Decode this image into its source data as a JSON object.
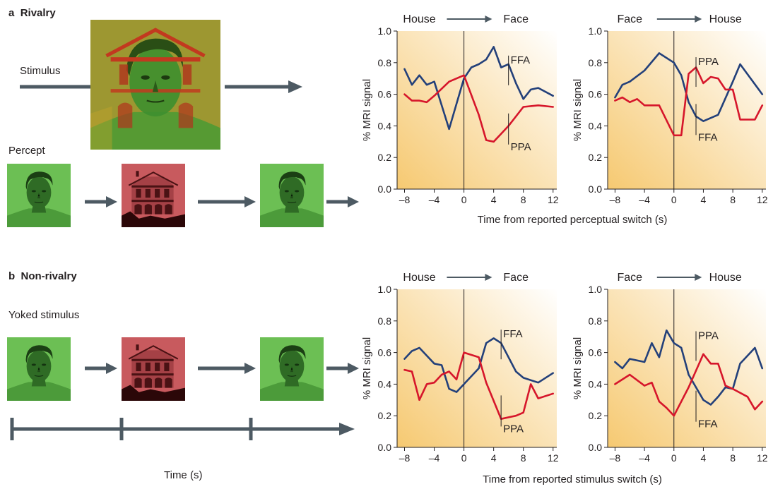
{
  "panel_a": {
    "letter": "a",
    "title": "Rivalry",
    "stimulus_label": "Stimulus",
    "percept_label": "Percept",
    "x_axis_title": "Time from reported perceptual switch (s)"
  },
  "panel_b": {
    "letter": "b",
    "title": "Non-rivalry",
    "yoked_label": "Yoked stimulus",
    "time_label": "Time (s)",
    "x_axis_title": "Time from reported stimulus switch (s)"
  },
  "icons": {
    "face": "face-image",
    "house": "house-image",
    "composite": "rivalry-composite-image",
    "arrow": "right-arrow-icon"
  },
  "colors": {
    "ffa_line": "#23407a",
    "ppa_line": "#d6162b",
    "face_tint": "#6cbf54",
    "house_tint": "#c85a5e",
    "arrow": "#4d5a63",
    "shade": "#f7cf83"
  },
  "chart_data": [
    {
      "type": "line",
      "panel": "a-left",
      "header_from": "House",
      "header_to": "Face",
      "ylabel": "% MRI signal",
      "xlim": [
        -9,
        12.5
      ],
      "ylim": [
        0,
        1.0
      ],
      "xticks": [
        "–8",
        "–4",
        "0",
        "4",
        "8",
        "12"
      ],
      "xtick_values": [
        -8,
        -4,
        0,
        4,
        8,
        12
      ],
      "yticks": [
        "0.0",
        "0.2",
        "0.4",
        "0.6",
        "0.8",
        "1.0"
      ],
      "ytick_values": [
        0,
        0.2,
        0.4,
        0.6,
        0.8,
        1.0
      ],
      "series": [
        {
          "name": "FFA",
          "color": "#23407a",
          "x": [
            -8,
            -7,
            -6,
            -5,
            -4,
            -2,
            0,
            1,
            2,
            3,
            4,
            5,
            6,
            7,
            8,
            9,
            10,
            12
          ],
          "y": [
            0.76,
            0.66,
            0.72,
            0.66,
            0.68,
            0.38,
            0.7,
            0.77,
            0.79,
            0.82,
            0.9,
            0.77,
            0.79,
            0.67,
            0.57,
            0.63,
            0.64,
            0.59
          ]
        },
        {
          "name": "PPA",
          "color": "#d6162b",
          "x": [
            -8,
            -7,
            -6,
            -5,
            -4,
            -2,
            0,
            2,
            3,
            4,
            5,
            6,
            8,
            10,
            12
          ],
          "y": [
            0.6,
            0.56,
            0.56,
            0.55,
            0.59,
            0.68,
            0.72,
            0.47,
            0.31,
            0.3,
            0.35,
            0.4,
            0.52,
            0.53,
            0.52
          ]
        }
      ],
      "annotations": [
        {
          "text": "FFA",
          "x": 6,
          "y": 0.8
        },
        {
          "text": "PPA",
          "x": 6,
          "y": 0.3
        }
      ]
    },
    {
      "type": "line",
      "panel": "a-right",
      "header_from": "Face",
      "header_to": "House",
      "ylabel": "% MRI signal",
      "xlim": [
        -9,
        12.5
      ],
      "ylim": [
        0,
        1.0
      ],
      "xticks": [
        "–8",
        "–4",
        "0",
        "4",
        "8",
        "12"
      ],
      "xtick_values": [
        -8,
        -4,
        0,
        4,
        8,
        12
      ],
      "yticks": [
        "0.0",
        "0.2",
        "0.4",
        "0.6",
        "0.8",
        "1.0"
      ],
      "ytick_values": [
        0,
        0.2,
        0.4,
        0.6,
        0.8,
        1.0
      ],
      "series": [
        {
          "name": "FFA",
          "color": "#23407a",
          "x": [
            -8,
            -7,
            -6,
            -4,
            -2,
            0,
            1,
            2,
            3,
            4,
            6,
            8,
            9,
            12
          ],
          "y": [
            0.58,
            0.66,
            0.68,
            0.75,
            0.86,
            0.8,
            0.72,
            0.55,
            0.46,
            0.43,
            0.47,
            0.68,
            0.79,
            0.6
          ]
        },
        {
          "name": "PPA",
          "color": "#d6162b",
          "x": [
            -8,
            -7,
            -6,
            -5,
            -4,
            -2,
            0,
            1,
            2,
            3,
            4,
            5,
            6,
            7,
            8,
            9,
            11,
            12
          ],
          "y": [
            0.56,
            0.58,
            0.55,
            0.57,
            0.53,
            0.53,
            0.34,
            0.34,
            0.73,
            0.77,
            0.67,
            0.71,
            0.7,
            0.63,
            0.63,
            0.44,
            0.44,
            0.53
          ]
        }
      ],
      "annotations": [
        {
          "text": "PPA",
          "x": 3,
          "y": 0.79
        },
        {
          "text": "FFA",
          "x": 3,
          "y": 0.36
        }
      ]
    },
    {
      "type": "line",
      "panel": "b-left",
      "header_from": "House",
      "header_to": "Face",
      "ylabel": "% MRI signal",
      "xlim": [
        -9,
        12.5
      ],
      "ylim": [
        0,
        1.0
      ],
      "xticks": [
        "–8",
        "–4",
        "0",
        "4",
        "8",
        "12"
      ],
      "xtick_values": [
        -8,
        -4,
        0,
        4,
        8,
        12
      ],
      "yticks": [
        "0.0",
        "0.2",
        "0.4",
        "0.6",
        "0.8",
        "1.0"
      ],
      "ytick_values": [
        0,
        0.2,
        0.4,
        0.6,
        0.8,
        1.0
      ],
      "series": [
        {
          "name": "FFA",
          "color": "#23407a",
          "x": [
            -8,
            -7,
            -6,
            -4,
            -3,
            -2,
            -1,
            0,
            2,
            3,
            4,
            5,
            6,
            7,
            8,
            10,
            12
          ],
          "y": [
            0.56,
            0.61,
            0.63,
            0.53,
            0.52,
            0.37,
            0.35,
            0.4,
            0.5,
            0.66,
            0.69,
            0.66,
            0.57,
            0.48,
            0.44,
            0.41,
            0.47
          ]
        },
        {
          "name": "PPA",
          "color": "#d6162b",
          "x": [
            -8,
            -7,
            -6,
            -5,
            -4,
            -3,
            -2,
            -1,
            0,
            2,
            3,
            5,
            6,
            7,
            8,
            9,
            10,
            12
          ],
          "y": [
            0.49,
            0.48,
            0.3,
            0.4,
            0.41,
            0.46,
            0.48,
            0.43,
            0.6,
            0.57,
            0.41,
            0.18,
            0.19,
            0.2,
            0.22,
            0.4,
            0.31,
            0.34
          ]
        }
      ],
      "annotations": [
        {
          "text": "FFA",
          "x": 5,
          "y": 0.7
        },
        {
          "text": "PPA",
          "x": 5,
          "y": 0.15
        }
      ]
    },
    {
      "type": "line",
      "panel": "b-right",
      "header_from": "Face",
      "header_to": "House",
      "ylabel": "% MRI signal",
      "xlim": [
        -9,
        12.5
      ],
      "ylim": [
        0,
        1.0
      ],
      "xticks": [
        "–8",
        "–4",
        "0",
        "4",
        "8",
        "12"
      ],
      "xtick_values": [
        -8,
        -4,
        0,
        4,
        8,
        12
      ],
      "yticks": [
        "0.0",
        "0.2",
        "0.4",
        "0.6",
        "0.8",
        "1.0"
      ],
      "ytick_values": [
        0,
        0.2,
        0.4,
        0.6,
        0.8,
        1.0
      ],
      "series": [
        {
          "name": "FFA",
          "color": "#23407a",
          "x": [
            -8,
            -7,
            -6,
            -4,
            -3,
            -2,
            -1,
            0,
            1,
            2,
            3,
            4,
            5,
            6,
            7,
            8,
            9,
            11,
            12
          ],
          "y": [
            0.54,
            0.5,
            0.56,
            0.54,
            0.66,
            0.57,
            0.74,
            0.66,
            0.63,
            0.46,
            0.38,
            0.3,
            0.27,
            0.32,
            0.38,
            0.37,
            0.53,
            0.63,
            0.5
          ]
        },
        {
          "name": "PPA",
          "color": "#d6162b",
          "x": [
            -8,
            -6,
            -4,
            -3,
            -2,
            -1,
            0,
            2,
            4,
            5,
            6,
            7,
            8,
            10,
            11,
            12
          ],
          "y": [
            0.4,
            0.46,
            0.39,
            0.41,
            0.29,
            0.25,
            0.2,
            0.38,
            0.59,
            0.53,
            0.53,
            0.39,
            0.37,
            0.32,
            0.24,
            0.29
          ]
        }
      ],
      "annotations": [
        {
          "text": "PPA",
          "x": 3,
          "y": 0.69
        },
        {
          "text": "FFA",
          "x": 3,
          "y": 0.18
        }
      ]
    }
  ]
}
